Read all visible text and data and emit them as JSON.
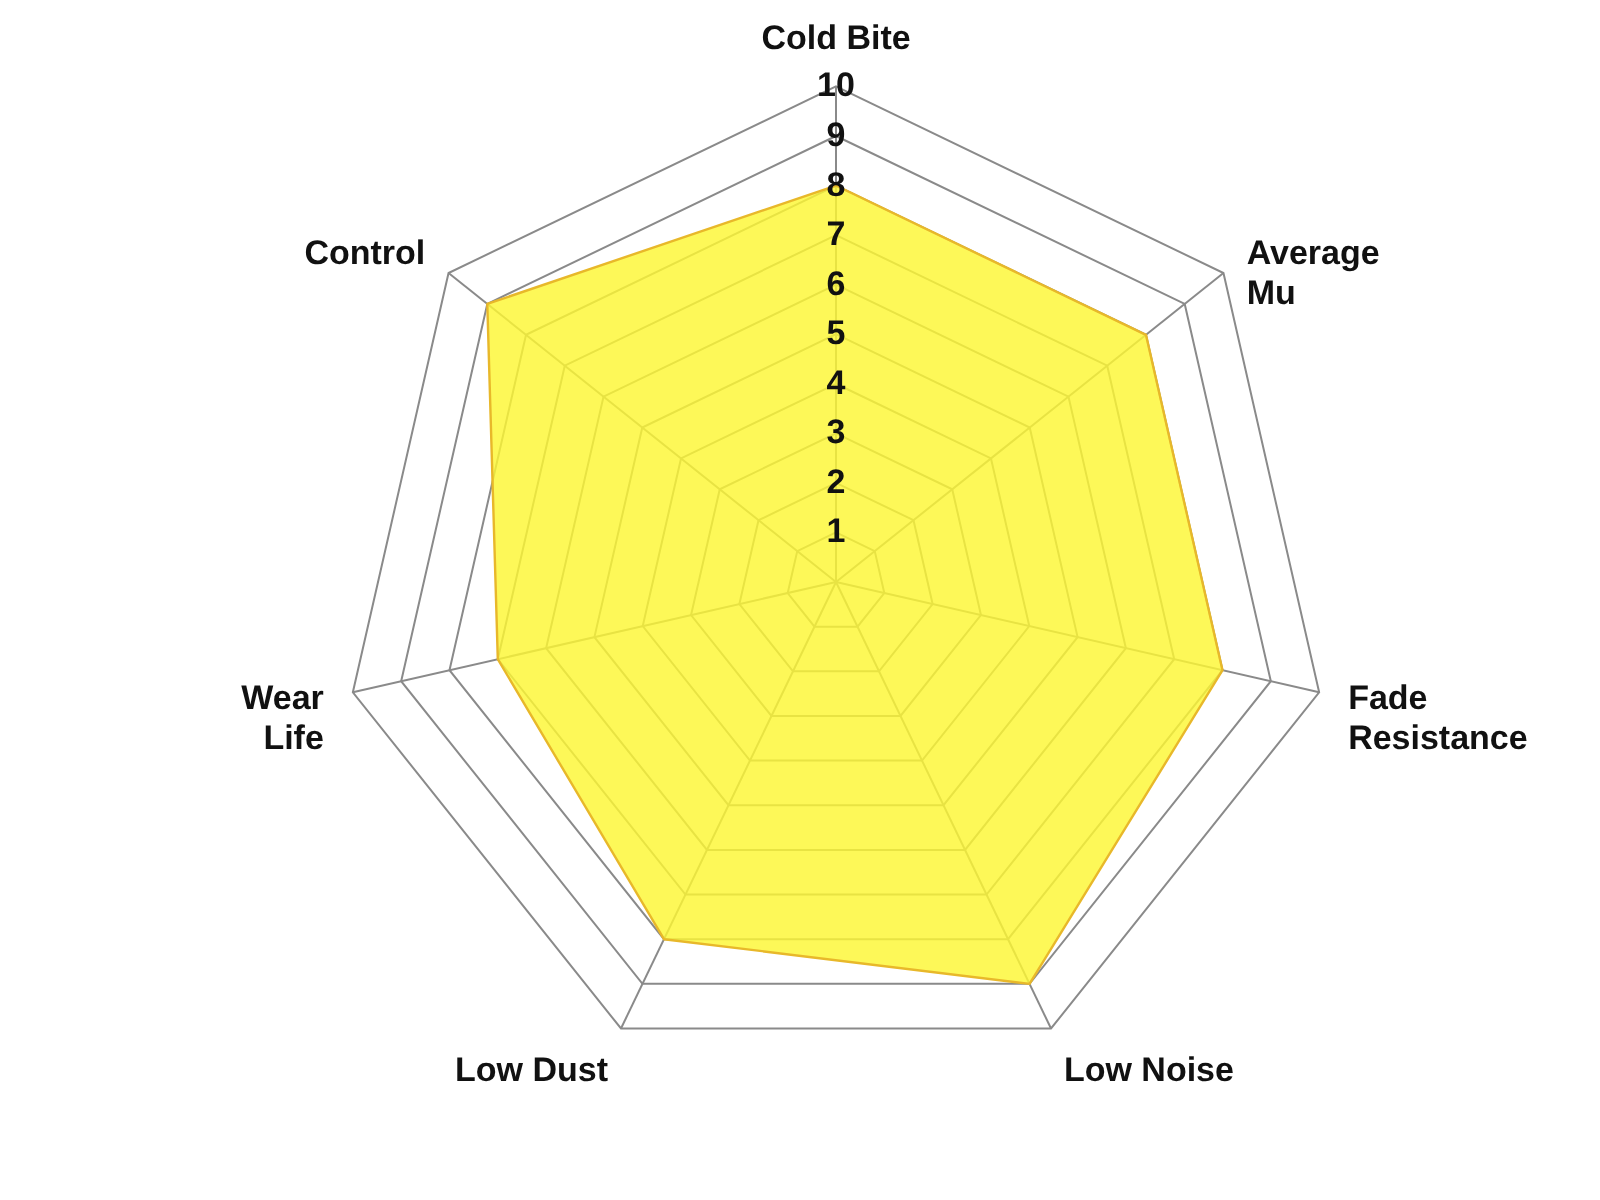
{
  "chart_data": {
    "type": "radar",
    "categories": [
      "Cold Bite",
      "Average Mu",
      "Fade Resistance",
      "Low Noise",
      "Low Dust",
      "Wear Life",
      "Control"
    ],
    "series": [
      {
        "color": "#fdf733",
        "values": [
          8,
          8,
          8,
          9,
          8,
          7,
          9
        ]
      }
    ],
    "ylim": [
      0,
      10
    ],
    "yticks": [
      1,
      2,
      3,
      4,
      5,
      6,
      7,
      8,
      9,
      10
    ],
    "grid": true
  }
}
